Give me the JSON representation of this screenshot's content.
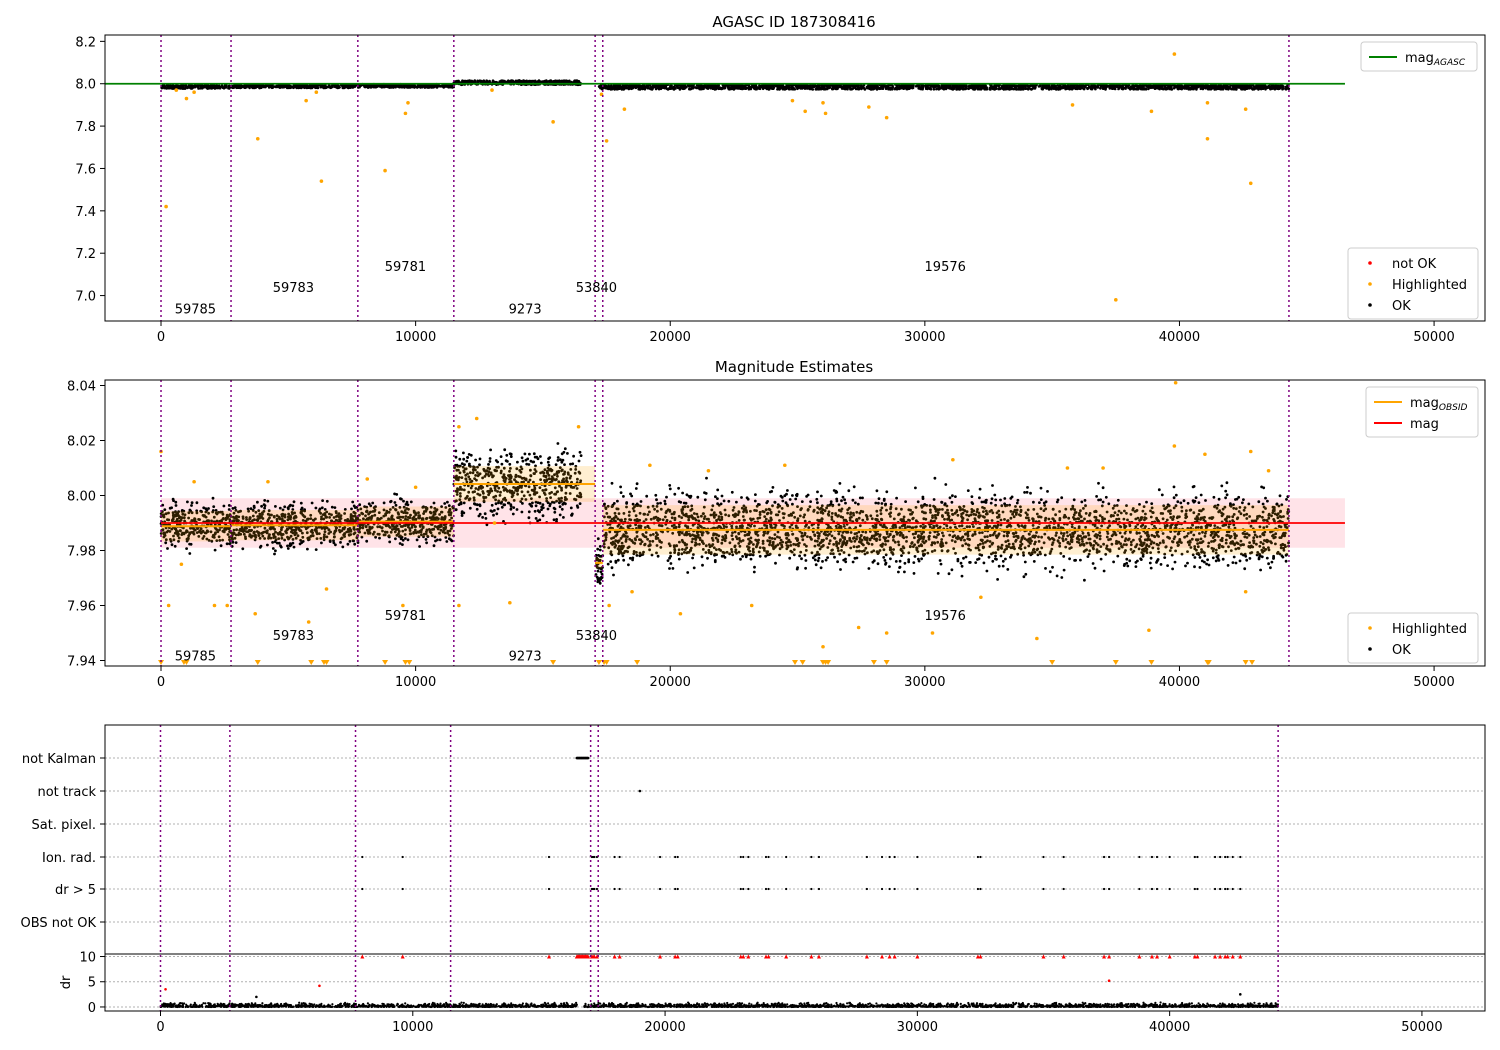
{
  "chart_data": [
    {
      "type": "scatter",
      "title": "AGASC ID 187308416",
      "xlim": [
        -2200,
        52000
      ],
      "ylim": [
        6.88,
        8.23
      ],
      "xticks": [
        0,
        10000,
        20000,
        30000,
        40000,
        50000
      ],
      "yticks": [
        7.0,
        7.2,
        7.4,
        7.6,
        7.8,
        8.0,
        8.2
      ],
      "grid": false,
      "legends": [
        {
          "placement": "upper right",
          "entries": [
            {
              "label": "mag",
              "sub": "AGASC",
              "color": "#008000",
              "kind": "line"
            }
          ]
        },
        {
          "placement": "lower right",
          "entries": [
            {
              "label": "not OK",
              "color": "#ff0000",
              "kind": "point"
            },
            {
              "label": "Highlighted",
              "color": "#ffa500",
              "kind": "point"
            },
            {
              "label": "OK",
              "color": "#000000",
              "kind": "point"
            }
          ]
        }
      ],
      "agasc_mag": 8.0,
      "agasc_line_x": [
        -2200,
        46500
      ],
      "obs_bounds": [
        0,
        2750,
        7730,
        11500,
        17050,
        17350,
        44300
      ],
      "obs_labels": [
        {
          "text": "59785",
          "x": 1350,
          "y": 6.94
        },
        {
          "text": "59783",
          "x": 5200,
          "y": 7.04
        },
        {
          "text": "59781",
          "x": 9600,
          "y": 7.14
        },
        {
          "text": "9273",
          "x": 14300,
          "y": 6.94
        },
        {
          "text": "53840",
          "x": 17100,
          "y": 7.04
        },
        {
          "text": "19576",
          "x": 30800,
          "y": 7.14
        }
      ],
      "ok_bands": [
        {
          "x": [
            0,
            2750
          ],
          "y": 7.985,
          "spread": 0.008
        },
        {
          "x": [
            2750,
            7730
          ],
          "y": 7.988,
          "spread": 0.008
        },
        {
          "x": [
            7730,
            11500
          ],
          "y": 7.99,
          "spread": 0.008
        },
        {
          "x": [
            11500,
            16500
          ],
          "y": 8.005,
          "spread": 0.01
        },
        {
          "x": [
            17200,
            44300
          ],
          "y": 7.985,
          "spread": 0.012
        }
      ],
      "highlighted": [
        {
          "x": 200,
          "y": 7.42
        },
        {
          "x": 600,
          "y": 7.97
        },
        {
          "x": 1000,
          "y": 7.93
        },
        {
          "x": 1300,
          "y": 7.96
        },
        {
          "x": 3800,
          "y": 7.74
        },
        {
          "x": 5700,
          "y": 7.92
        },
        {
          "x": 6300,
          "y": 7.54
        },
        {
          "x": 6100,
          "y": 7.96
        },
        {
          "x": 8800,
          "y": 7.59
        },
        {
          "x": 9600,
          "y": 7.86
        },
        {
          "x": 9700,
          "y": 7.91
        },
        {
          "x": 13000,
          "y": 7.97
        },
        {
          "x": 15400,
          "y": 7.82
        },
        {
          "x": 17500,
          "y": 7.73
        },
        {
          "x": 17300,
          "y": 7.95
        },
        {
          "x": 18200,
          "y": 7.88
        },
        {
          "x": 24800,
          "y": 7.92
        },
        {
          "x": 25300,
          "y": 7.87
        },
        {
          "x": 26100,
          "y": 7.86
        },
        {
          "x": 26000,
          "y": 7.91
        },
        {
          "x": 27800,
          "y": 7.89
        },
        {
          "x": 28500,
          "y": 7.84
        },
        {
          "x": 35800,
          "y": 7.9
        },
        {
          "x": 37500,
          "y": 6.98
        },
        {
          "x": 38900,
          "y": 7.87
        },
        {
          "x": 39800,
          "y": 8.14
        },
        {
          "x": 41100,
          "y": 7.74
        },
        {
          "x": 41100,
          "y": 7.91
        },
        {
          "x": 42600,
          "y": 7.88
        },
        {
          "x": 42800,
          "y": 7.53
        }
      ]
    },
    {
      "type": "scatter",
      "title": "Magnitude Estimates",
      "xlim": [
        -2200,
        52000
      ],
      "ylim": [
        7.938,
        8.042
      ],
      "xticks": [
        0,
        10000,
        20000,
        30000,
        40000,
        50000
      ],
      "yticks": [
        7.94,
        7.96,
        7.98,
        8.0,
        8.02,
        8.04
      ],
      "grid": false,
      "legends": [
        {
          "placement": "upper right",
          "entries": [
            {
              "label": "mag",
              "sub": "OBSID",
              "color": "#ffa500",
              "kind": "line"
            },
            {
              "label": "mag",
              "sub": "",
              "color": "#ff0000",
              "kind": "line"
            }
          ]
        },
        {
          "placement": "lower right",
          "entries": [
            {
              "label": "Highlighted",
              "color": "#ffa500",
              "kind": "point"
            },
            {
              "label": "OK",
              "color": "#000000",
              "kind": "point"
            }
          ]
        }
      ],
      "mean_mag": 7.99,
      "mean_band": [
        7.981,
        7.999
      ],
      "mean_line_x": [
        0,
        46500
      ],
      "obs_bounds": [
        0,
        2750,
        7730,
        11500,
        17050,
        17350,
        44300
      ],
      "obs_mags": [
        {
          "x": [
            0,
            2750
          ],
          "mag": 7.9888,
          "err": 0.0055
        },
        {
          "x": [
            2750,
            7730
          ],
          "mag": 7.9892,
          "err": 0.0055
        },
        {
          "x": [
            7730,
            11500
          ],
          "mag": 7.9905,
          "err": 0.0055
        },
        {
          "x": [
            11500,
            17050
          ],
          "mag": 8.0042,
          "err": 0.0065
        },
        {
          "x": [
            17050,
            17350
          ],
          "mag": 7.9755,
          "err": 0.002
        },
        {
          "x": [
            17350,
            44300
          ],
          "mag": 7.9875,
          "err": 0.009
        }
      ],
      "obs_labels": [
        {
          "text": "59785",
          "x": 1350,
          "y": 7.9418
        },
        {
          "text": "59783",
          "x": 5200,
          "y": 7.9493
        },
        {
          "text": "59781",
          "x": 9600,
          "y": 7.9566
        },
        {
          "text": "9273",
          "x": 14300,
          "y": 7.9418
        },
        {
          "text": "53840",
          "x": 17100,
          "y": 7.9493
        },
        {
          "text": "19576",
          "x": 30800,
          "y": 7.9566
        }
      ],
      "ok_bands": [
        {
          "x": [
            0,
            2750
          ],
          "y": 7.989,
          "spread": 0.0075
        },
        {
          "x": [
            2750,
            7730
          ],
          "y": 7.9892,
          "spread": 0.0075
        },
        {
          "x": [
            7730,
            11500
          ],
          "y": 7.9905,
          "spread": 0.0075
        },
        {
          "x": [
            11500,
            16500
          ],
          "y": 8.004,
          "spread": 0.012
        },
        {
          "x": [
            17050,
            17350
          ],
          "y": 7.975,
          "spread": 0.008
        },
        {
          "x": [
            17400,
            44300
          ],
          "y": 7.9875,
          "spread": 0.013
        }
      ],
      "highlighted": [
        {
          "x": 0,
          "y": 8.016
        },
        {
          "x": 300,
          "y": 7.96
        },
        {
          "x": 800,
          "y": 7.975
        },
        {
          "x": 1300,
          "y": 8.005
        },
        {
          "x": 2100,
          "y": 7.96
        },
        {
          "x": 2600,
          "y": 7.96
        },
        {
          "x": 3700,
          "y": 7.957
        },
        {
          "x": 4200,
          "y": 8.005
        },
        {
          "x": 5800,
          "y": 7.954
        },
        {
          "x": 6500,
          "y": 7.966
        },
        {
          "x": 8100,
          "y": 8.006
        },
        {
          "x": 9500,
          "y": 7.96
        },
        {
          "x": 10000,
          "y": 8.003
        },
        {
          "x": 11700,
          "y": 7.96
        },
        {
          "x": 11700,
          "y": 8.025
        },
        {
          "x": 12400,
          "y": 8.028
        },
        {
          "x": 13100,
          "y": 7.99
        },
        {
          "x": 13700,
          "y": 7.961
        },
        {
          "x": 16400,
          "y": 8.025
        },
        {
          "x": 17600,
          "y": 7.96
        },
        {
          "x": 18500,
          "y": 7.965
        },
        {
          "x": 19200,
          "y": 8.011
        },
        {
          "x": 20400,
          "y": 7.957
        },
        {
          "x": 21500,
          "y": 8.009
        },
        {
          "x": 23200,
          "y": 7.96
        },
        {
          "x": 24500,
          "y": 8.011
        },
        {
          "x": 26000,
          "y": 7.945
        },
        {
          "x": 27400,
          "y": 7.952
        },
        {
          "x": 28500,
          "y": 7.95
        },
        {
          "x": 30300,
          "y": 7.95
        },
        {
          "x": 31100,
          "y": 8.013
        },
        {
          "x": 32200,
          "y": 7.963
        },
        {
          "x": 34400,
          "y": 7.948
        },
        {
          "x": 35600,
          "y": 8.01
        },
        {
          "x": 37000,
          "y": 8.01
        },
        {
          "x": 38800,
          "y": 7.951
        },
        {
          "x": 39800,
          "y": 8.018
        },
        {
          "x": 39850,
          "y": 8.041
        },
        {
          "x": 41000,
          "y": 8.015
        },
        {
          "x": 42600,
          "y": 7.965
        },
        {
          "x": 42800,
          "y": 8.016
        },
        {
          "x": 43500,
          "y": 8.009
        }
      ],
      "highlighted_below": [
        0,
        900,
        1000,
        3800,
        5900,
        6400,
        6500,
        8800,
        9600,
        9750,
        15400,
        17200,
        17400,
        17500,
        18700,
        24900,
        25200,
        26000,
        26100,
        26200,
        28000,
        28500,
        35000,
        37500,
        38900,
        41100,
        41150,
        42600,
        42850
      ]
    },
    {
      "type": "scatter",
      "title": "",
      "xlim": [
        -2200,
        52500
      ],
      "xticks": [
        0,
        10000,
        20000,
        30000,
        40000,
        50000
      ],
      "flag_categories": [
        "not Kalman",
        "not track",
        "Sat. pixel.",
        "Ion. rad.",
        "dr > 5",
        "OBS not OK"
      ],
      "dr_ylabel": "dr",
      "dr_ylim": [
        -0.8,
        10.5
      ],
      "dr_yticks": [
        0,
        5,
        10
      ],
      "obs_bounds": [
        0,
        2750,
        7730,
        11500,
        17050,
        17350,
        44300
      ],
      "not_kalman_x": [
        16500,
        16950
      ],
      "not_track_x": [
        19000
      ],
      "ion_rad_x": [
        8000,
        9600,
        15400,
        17100,
        17150,
        17200,
        17300,
        18000,
        18200,
        19800,
        20400,
        20500,
        23000,
        23100,
        23300,
        24000,
        24100,
        24800,
        25800,
        26100,
        28000,
        28600,
        28900,
        29100,
        30000,
        32400,
        32500,
        35000,
        35800,
        37400,
        37600,
        38800,
        39300,
        39500,
        40000,
        41000,
        41100,
        41800,
        42000,
        42200,
        42300,
        42500,
        42800
      ],
      "dr_outliers": [
        {
          "x": 200,
          "y": 3.5
        },
        {
          "x": 6300,
          "y": 4.2
        },
        {
          "x": 37600,
          "y": 5.2
        },
        {
          "x": 3800,
          "y": 2.0
        },
        {
          "x": 42800,
          "y": 2.5
        }
      ],
      "dr_segments": [
        [
          0,
          16500
        ],
        [
          16800,
          44300
        ]
      ]
    }
  ]
}
